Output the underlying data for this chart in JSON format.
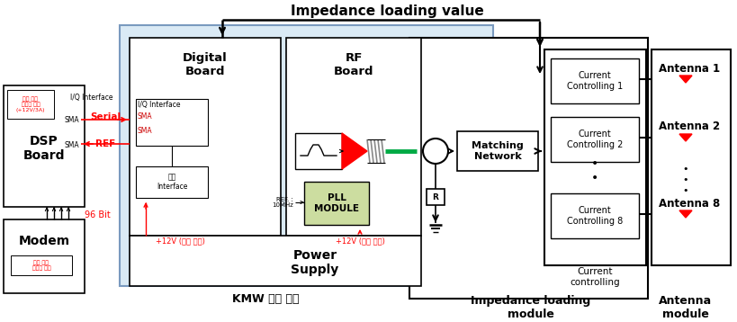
{
  "title": "Impedance loading value",
  "bg_color": "#ffffff",
  "kmw_bg": "#daeaf5",
  "kmw_label": "KMW 진행 모듈",
  "dsp_label": "DSP\nBoard",
  "modem_label": "Modem",
  "modem_sub": "별도 전원\n이용하 사용",
  "modem_top_label": "별도 전원\n이용하 사용\n(+12V/3A)",
  "96bit_label": "96 Bit",
  "serial_label": "Serial",
  "ref_label": "REF",
  "iq_interface": "I/Q Interface",
  "digital_board": "Digital\nBoard",
  "rf_board": "RF\nBoard",
  "pll_module": "PLL\nMODULE",
  "ref_10mhz": "REF. :\n10MHz",
  "power_supply": "Power\nSupply",
  "plus12v_1": "+12V (변경 가능)",
  "plus12v_2": "+12V (변경 가능)",
  "jinwon_interface": "전원\nInterface",
  "matching_network": "Matching\nNetwork",
  "current_controlling_lbl": "Current\ncontrolling",
  "impedance_loading": "Impedance loading\nmodule",
  "antenna_module": "Antenna\nmodule",
  "current_ctrl_labels": [
    "Current\nControlling 1",
    "Current\nControlling 2",
    "Current\nControlling 8"
  ],
  "antenna_labels": [
    "Antenna 1",
    "Antenna 2",
    "Antenna 8"
  ]
}
